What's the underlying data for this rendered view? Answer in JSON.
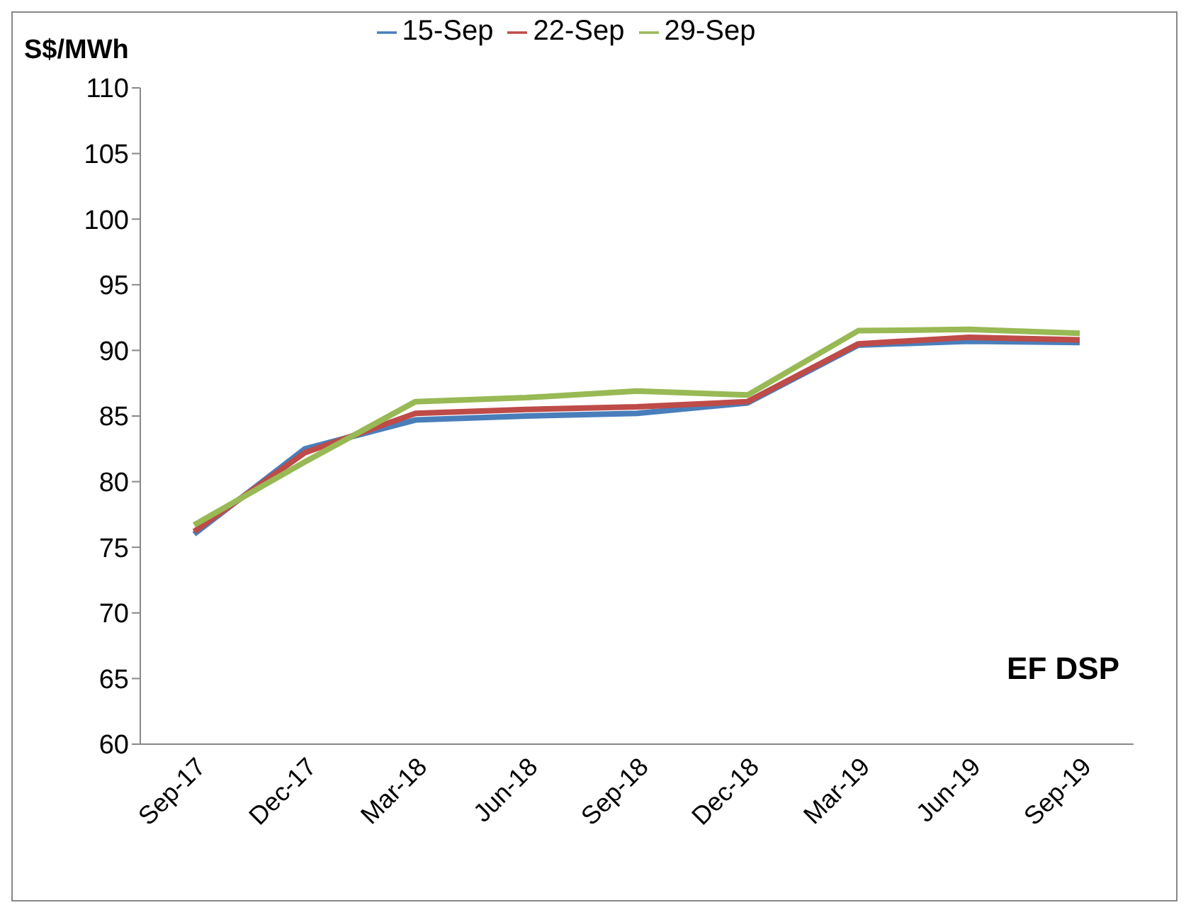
{
  "chart_data": {
    "type": "line",
    "ylabel": "S$/MWh",
    "categories": [
      "Sep-17",
      "Dec-17",
      "Mar-18",
      "Jun-18",
      "Sep-18",
      "Dec-18",
      "Mar-19",
      "Jun-19",
      "Sep-19"
    ],
    "series": [
      {
        "name": "15-Sep",
        "color": "#4a7ebb",
        "values": [
          76.0,
          82.5,
          84.7,
          85.0,
          85.2,
          86.0,
          90.4,
          90.7,
          90.6
        ]
      },
      {
        "name": "22-Sep",
        "color": "#be4b48",
        "values": [
          76.2,
          82.2,
          85.2,
          85.5,
          85.7,
          86.1,
          90.5,
          91.0,
          90.8
        ]
      },
      {
        "name": "29-Sep",
        "color": "#98b954",
        "values": [
          76.7,
          81.5,
          86.1,
          86.4,
          86.9,
          86.6,
          91.5,
          91.6,
          91.3
        ]
      }
    ],
    "ylim": [
      60,
      110
    ],
    "yticks": [
      60,
      65,
      70,
      75,
      80,
      85,
      90,
      95,
      100,
      105,
      110
    ],
    "grid": false,
    "legend": "top",
    "marker": "none",
    "annotations": [
      "EF DSP"
    ]
  }
}
